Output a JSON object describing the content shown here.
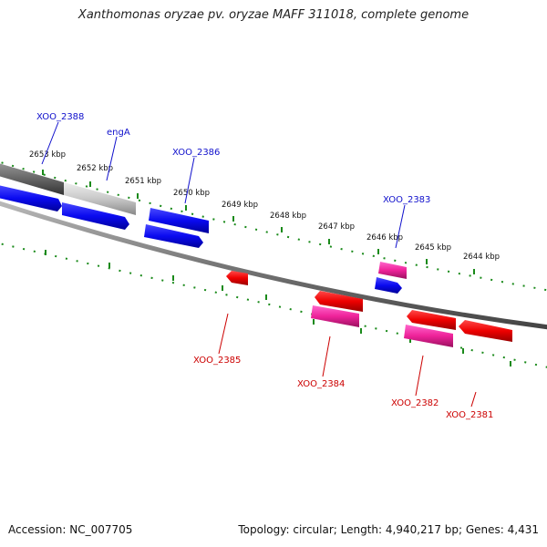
{
  "title": "Xanthomonas oryzae pv. oryzae MAFF 311018, complete genome",
  "footer": {
    "accession": "Accession: NC_007705",
    "summary": "Topology: circular; Length: 4,940,217 bp; Genes: 4,431"
  },
  "colors": {
    "forward_gene": "#1010ee",
    "reverse_gene": "#ee0000",
    "pseudo_or_rna_gene": "#ee2299",
    "grey_gene": "#888888",
    "tick": "#1a8a1a",
    "forward_label": "#1010cc",
    "reverse_label": "#cc0000"
  },
  "scale": {
    "unit": "kbp",
    "labels": [
      "2653 kbp",
      "2652 kbp",
      "2651 kbp",
      "2650 kbp",
      "2649 kbp",
      "2648 kbp",
      "2647 kbp",
      "2646 kbp",
      "2645 kbp",
      "2644 kbp"
    ]
  },
  "genes": {
    "forward": [
      "XOO_2388",
      "engA",
      "XOO_2386",
      "XOO_2383"
    ],
    "reverse": [
      "XOO_2385",
      "XOO_2384",
      "XOO_2382",
      "XOO_2381"
    ]
  }
}
